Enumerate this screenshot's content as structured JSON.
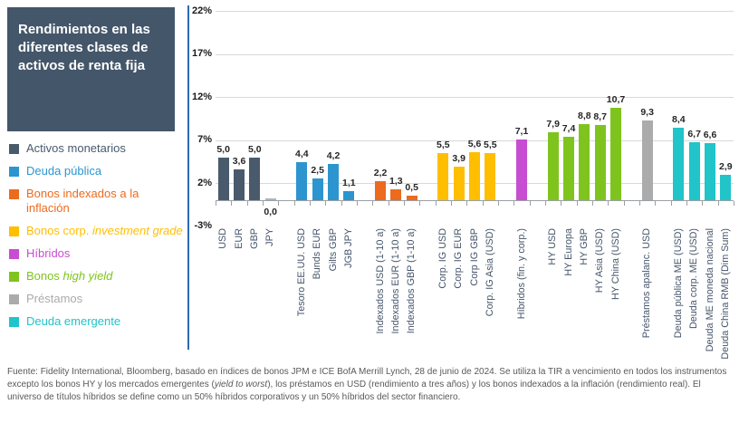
{
  "title": "Rendimientos en las diferentes clases de activos de renta fija",
  "legend": {
    "items": [
      {
        "text": "Activos monetarios",
        "italic": "",
        "color": "#495A6C"
      },
      {
        "text": "Deuda pública",
        "italic": "",
        "color": "#2C95CF"
      },
      {
        "text": "Bonos indexados a la inflación",
        "italic": "",
        "color": "#EC6B1E"
      },
      {
        "text": "Bonos corp. ",
        "italic": "investment grade",
        "color": "#FFBE00"
      },
      {
        "text": "Híbridos",
        "italic": "",
        "color": "#C74DD1"
      },
      {
        "text": "Bonos ",
        "italic": "high yield",
        "color": "#7FC41E"
      },
      {
        "text": "Préstamos",
        "italic": "",
        "color": "#ABABAB"
      },
      {
        "text": "Deuda emergente",
        "italic": "",
        "color": "#20C4C9"
      }
    ]
  },
  "chart_data": {
    "type": "bar",
    "ylim": [
      -3,
      22
    ],
    "yticks": [
      {
        "label": "22%",
        "value": 22
      },
      {
        "label": "17%",
        "value": 17
      },
      {
        "label": "12%",
        "value": 12
      },
      {
        "label": "7%",
        "value": 7
      },
      {
        "label": "2%",
        "value": 2
      },
      {
        "label": "-3%",
        "value": -3
      }
    ],
    "grid": true,
    "legend_position": "left",
    "groups": [
      {
        "name": "Activos monetarios",
        "color": "#495A6C",
        "bars": [
          {
            "label": "USD",
            "value": 5.0,
            "display": "5,0"
          },
          {
            "label": "EUR",
            "value": 3.6,
            "display": "3,6"
          },
          {
            "label": "GBP",
            "value": 5.0,
            "display": "5,0"
          },
          {
            "label": "JPY",
            "value": 0.0,
            "display": "0,0"
          }
        ]
      },
      {
        "name": "Deuda pública",
        "color": "#2C95CF",
        "bars": [
          {
            "label": "Tesoro EE.UU. USD",
            "value": 4.4,
            "display": "4,4"
          },
          {
            "label": "Bunds EUR",
            "value": 2.5,
            "display": "2,5"
          },
          {
            "label": "Gilts GBP",
            "value": 4.2,
            "display": "4,2"
          },
          {
            "label": "JGB JPY",
            "value": 1.1,
            "display": "1,1"
          }
        ]
      },
      {
        "name": "Bonos indexados a la inflación",
        "color": "#EC6B1E",
        "bars": [
          {
            "label": "Indexados USD (1-10 a)",
            "value": 2.2,
            "display": "2,2"
          },
          {
            "label": "Indexados EUR (1-10 a)",
            "value": 1.3,
            "display": "1,3"
          },
          {
            "label": "Indexados GBP (1-10 a)",
            "value": 0.5,
            "display": "0,5"
          }
        ]
      },
      {
        "name": "Bonos corp. investment grade",
        "color": "#FFBE00",
        "bars": [
          {
            "label": "Corp. IG USD",
            "value": 5.5,
            "display": "5,5"
          },
          {
            "label": "Corp. IG EUR",
            "value": 3.9,
            "display": "3,9"
          },
          {
            "label": "Corp IG GBP",
            "value": 5.6,
            "display": "5,6"
          },
          {
            "label": "Corp. IG Asia (USD)",
            "value": 5.5,
            "display": "5,5"
          }
        ]
      },
      {
        "name": "Híbridos",
        "color": "#C74DD1",
        "bars": [
          {
            "label": "Híbridos (fin. y corp.)",
            "value": 7.1,
            "display": "7,1"
          }
        ]
      },
      {
        "name": "Bonos high yield",
        "color": "#7FC41E",
        "bars": [
          {
            "label": "HY USD",
            "value": 7.9,
            "display": "7,9"
          },
          {
            "label": "HY Europa",
            "value": 7.4,
            "display": "7,4"
          },
          {
            "label": "HY GBP",
            "value": 8.8,
            "display": "8,8"
          },
          {
            "label": "HY Asia (USD)",
            "value": 8.7,
            "display": "8,7"
          },
          {
            "label": "HY China (USD)",
            "value": 10.7,
            "display": "10,7"
          }
        ]
      },
      {
        "name": "Préstamos",
        "color": "#ABABAB",
        "bars": [
          {
            "label": "Préstamos apalanc. USD",
            "value": 9.3,
            "display": "9,3"
          }
        ]
      },
      {
        "name": "Deuda emergente",
        "color": "#20C4C9",
        "bars": [
          {
            "label": "Deuda pública ME (USD)",
            "value": 8.4,
            "display": "8,4"
          },
          {
            "label": "Deuda corp. ME (USD)",
            "value": 6.7,
            "display": "6,7"
          },
          {
            "label": "Deuda ME moneda nacional",
            "value": 6.6,
            "display": "6,6"
          },
          {
            "label": "Deuda China RMB (Dim Sum)",
            "value": 2.9,
            "display": "2,9"
          }
        ]
      }
    ]
  },
  "footer": {
    "part1": "Fuente: Fidelity International, Bloomberg, basado en índices de bonos JPM e ICE BofA Merrill Lynch, 28 de junio de 2024. Se utiliza la TIR a vencimiento en todos los instrumentos excepto los bonos HY y los mercados emergentes (",
    "italic": "yield to worst",
    "part2": "), los préstamos en USD (rendimiento a tres años) y los bonos indexados a la inflación (rendimiento real). El universo de títulos híbridos se define como un 50% híbridos corporativos y un 50% híbridos del sector financiero."
  },
  "colors": {
    "title_bg": "#445669",
    "separator": "#2B69B3",
    "gridline": "#D9D9D9",
    "axis": "#9BA0A5",
    "category_label": "#44546A",
    "value_label": "#262626",
    "footer_text": "#595959"
  }
}
